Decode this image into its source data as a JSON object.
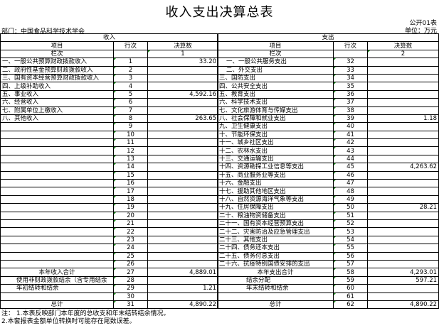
{
  "title": "收入支出决算总表",
  "department": "部门：中国食品科学技术学会",
  "form_code": "公开01表",
  "unit": "单位：万元",
  "income": {
    "header": "收入",
    "col_item": "项目",
    "col_line": "行次",
    "col_amount": "决算数",
    "lanci": "栏次",
    "lanci_num": "1",
    "rows": [
      {
        "item": "一、一般公共预算财政拨款收入",
        "line": "1",
        "amount": "33.20"
      },
      {
        "item": "二、政府性基金预算财政拨款收入",
        "line": "2",
        "amount": ""
      },
      {
        "item": "三、国有资本经营预算财政拨款收入",
        "line": "3",
        "amount": ""
      },
      {
        "item": "四、上级补助收入",
        "line": "4",
        "amount": ""
      },
      {
        "item": "五、事业收入",
        "line": "5",
        "amount": "4,592.16"
      },
      {
        "item": "六、经营收入",
        "line": "6",
        "amount": ""
      },
      {
        "item": "七、附属单位上缴收入",
        "line": "7",
        "amount": ""
      },
      {
        "item": "八、其他收入",
        "line": "8",
        "amount": "263.65"
      },
      {
        "item": "",
        "line": "9",
        "amount": ""
      },
      {
        "item": "",
        "line": "10",
        "amount": ""
      },
      {
        "item": "",
        "line": "11",
        "amount": ""
      },
      {
        "item": "",
        "line": "12",
        "amount": ""
      },
      {
        "item": "",
        "line": "13",
        "amount": ""
      },
      {
        "item": "",
        "line": "14",
        "amount": ""
      },
      {
        "item": "",
        "line": "15",
        "amount": ""
      },
      {
        "item": "",
        "line": "16",
        "amount": ""
      },
      {
        "item": "",
        "line": "17",
        "amount": ""
      },
      {
        "item": "",
        "line": "18",
        "amount": ""
      },
      {
        "item": "",
        "line": "19",
        "amount": ""
      },
      {
        "item": "",
        "line": "20",
        "amount": ""
      },
      {
        "item": "",
        "line": "21",
        "amount": ""
      },
      {
        "item": "",
        "line": "22",
        "amount": ""
      },
      {
        "item": "",
        "line": "23",
        "amount": ""
      },
      {
        "item": "",
        "line": "24",
        "amount": ""
      },
      {
        "item": "",
        "line": "25",
        "amount": ""
      },
      {
        "item": "",
        "line": "26",
        "amount": ""
      },
      {
        "item": "本年收入合计",
        "line": "27",
        "amount": "4,889.01",
        "align": "c"
      },
      {
        "item": "使用非财政拨款结余（含专用结余",
        "line": "28",
        "amount": "",
        "align": "i"
      },
      {
        "item": "年初结转和结余",
        "line": "29",
        "amount": "1.21",
        "align": "i"
      },
      {
        "item": "",
        "line": "30",
        "amount": ""
      },
      {
        "item": "总计",
        "line": "31",
        "amount": "4,890.22",
        "align": "c"
      }
    ]
  },
  "expense": {
    "header": "支出",
    "col_item": "项目",
    "col_line": "行次",
    "col_amount": "决算数",
    "lanci": "栏次",
    "lanci_num": "2",
    "rows": [
      {
        "item": "一、一般公共服务支出",
        "line": "32",
        "amount": "",
        "align": "i"
      },
      {
        "item": "二、外交支出",
        "line": "33",
        "amount": "",
        "align": "i"
      },
      {
        "item": "三、国防支出",
        "line": "34",
        "amount": ""
      },
      {
        "item": "四、公共安全支出",
        "line": "35",
        "amount": ""
      },
      {
        "item": "五、教育支出",
        "line": "36",
        "amount": ""
      },
      {
        "item": "六、科学技术支出",
        "line": "37",
        "amount": ""
      },
      {
        "item": "七、文化旅游体育与传媒支出",
        "line": "38",
        "amount": ""
      },
      {
        "item": "八、社会保障和就业支出",
        "line": "39",
        "amount": "1.18"
      },
      {
        "item": "九、卫生健康支出",
        "line": "40",
        "amount": ""
      },
      {
        "item": "十、节能环保支出",
        "line": "41",
        "amount": ""
      },
      {
        "item": "十一、城乡社区支出",
        "line": "42",
        "amount": ""
      },
      {
        "item": "十二、农林水支出",
        "line": "43",
        "amount": ""
      },
      {
        "item": "十三、交通运输支出",
        "line": "44",
        "amount": ""
      },
      {
        "item": "十四、资源勘探工业信息等支出",
        "line": "45",
        "amount": "4,263.62"
      },
      {
        "item": "十五、商业服务业等支出",
        "line": "46",
        "amount": ""
      },
      {
        "item": "十六、金融支出",
        "line": "47",
        "amount": ""
      },
      {
        "item": "十七、援助其他地区支出",
        "line": "48",
        "amount": ""
      },
      {
        "item": "十八、自然资源海洋气象等支出",
        "line": "49",
        "amount": ""
      },
      {
        "item": "十九、住房保障支出",
        "line": "50",
        "amount": "28.21"
      },
      {
        "item": "二十、粮油物资储备支出",
        "line": "51",
        "amount": ""
      },
      {
        "item": "二十一、国有资本经营预算支出",
        "line": "52",
        "amount": ""
      },
      {
        "item": "二十二、灾害防治及应急管理支出",
        "line": "53",
        "amount": ""
      },
      {
        "item": "二十三、其他支出",
        "line": "54",
        "amount": ""
      },
      {
        "item": "二十四、债务还本支出",
        "line": "55",
        "amount": ""
      },
      {
        "item": "二十五、债务付息支出",
        "line": "56",
        "amount": ""
      },
      {
        "item": "二十六、抗疫特别国债安排的支出",
        "line": "57",
        "amount": ""
      },
      {
        "item": "本年支出合计",
        "line": "58",
        "amount": "4,293.01",
        "align": "c"
      },
      {
        "item": "结余分配",
        "line": "59",
        "amount": "597.21",
        "align": "i2"
      },
      {
        "item": "年末结转和结余",
        "line": "60",
        "amount": "",
        "align": "i2"
      },
      {
        "item": "",
        "line": "61",
        "amount": ""
      },
      {
        "item": "总计",
        "line": "62",
        "amount": "4,890.22",
        "align": "c"
      }
    ]
  },
  "notes": [
    "注： 1.本表反映部门本年度的总收支和年末结转结余情况。",
    "2.本套报表金额单位转换时可能存在尾数误差。"
  ]
}
